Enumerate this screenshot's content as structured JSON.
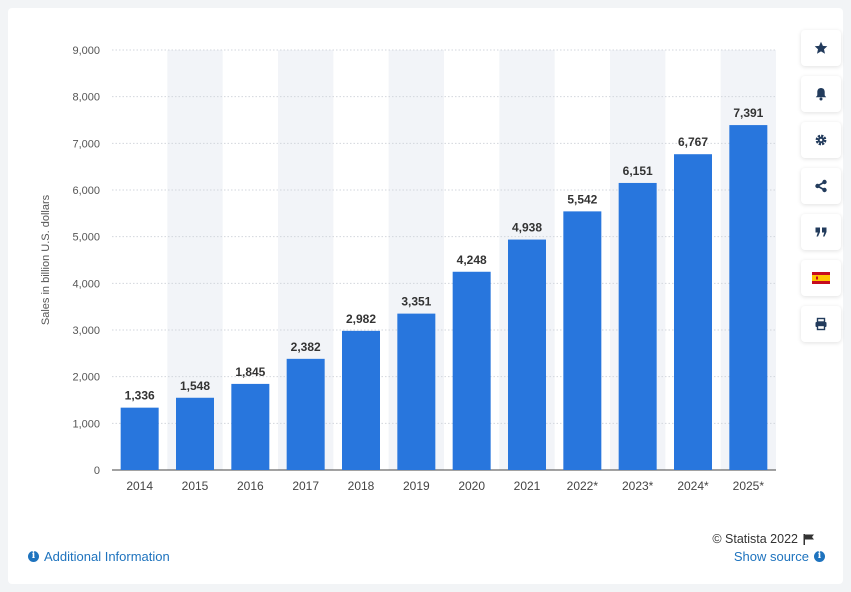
{
  "chart_data": {
    "type": "bar",
    "categories": [
      "2014",
      "2015",
      "2016",
      "2017",
      "2018",
      "2019",
      "2020",
      "2021",
      "2022*",
      "2023*",
      "2024*",
      "2025*"
    ],
    "values": [
      1336,
      1548,
      1845,
      2382,
      2982,
      3351,
      4248,
      4938,
      5542,
      6151,
      6767,
      7391
    ],
    "value_labels": [
      "1,336",
      "1,548",
      "1,845",
      "2,382",
      "2,982",
      "3,351",
      "4,248",
      "4,938",
      "5,542",
      "6,151",
      "6,767",
      "7,391"
    ],
    "ylabel": "Sales in billion U.S. dollars",
    "xlabel": "",
    "title": "",
    "ylim": [
      0,
      9000
    ],
    "yticks": [
      0,
      1000,
      2000,
      3000,
      4000,
      5000,
      6000,
      7000,
      8000,
      9000
    ],
    "ytick_labels": [
      "0",
      "1,000",
      "2,000",
      "3,000",
      "4,000",
      "5,000",
      "6,000",
      "7,000",
      "8,000",
      "9,000"
    ],
    "grid": true,
    "bar_color": "#2876dd"
  },
  "toolbar": {
    "items": [
      "star-icon",
      "bell-icon",
      "gear-icon",
      "share-icon",
      "quote-icon",
      "flag-icon",
      "print-icon"
    ]
  },
  "footer": {
    "credit": "© Statista 2022",
    "additional_info": "Additional Information",
    "show_source": "Show source"
  }
}
